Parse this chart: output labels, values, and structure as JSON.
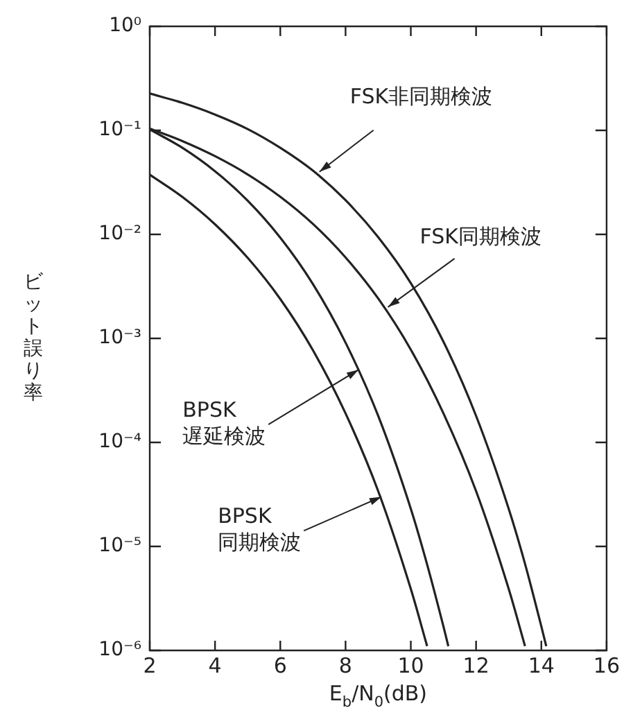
{
  "chart_data": {
    "type": "line",
    "xlabel": "E$_{b}$/N$_{0}$(dB)",
    "ylabel": "ビット誤り率",
    "log": "y",
    "xlim": [
      2,
      16
    ],
    "xticks": [
      2,
      4,
      6,
      8,
      10,
      12,
      14,
      16
    ],
    "ylim": [
      1e-06,
      1
    ],
    "yticks": [
      {
        "value": 1,
        "label": "10⁰"
      },
      {
        "value": 0.1,
        "label": "10⁻¹"
      },
      {
        "value": 0.01,
        "label": "10⁻²"
      },
      {
        "value": 0.001,
        "label": "10⁻³"
      },
      {
        "value": 0.0001,
        "label": "10⁻⁴"
      },
      {
        "value": 1e-05,
        "label": "10⁻⁵"
      },
      {
        "value": 1e-06,
        "label": "10⁻⁶"
      }
    ],
    "series": [
      {
        "color": "#222222",
        "x": [
          2,
          3,
          4,
          5,
          6,
          7,
          8,
          9,
          10,
          11,
          12,
          13,
          13.5,
          14,
          14.15
        ],
        "values": [
          0.226,
          0.184,
          0.142,
          0.103,
          0.068,
          0.041,
          0.0213,
          0.0094,
          0.0034,
          0.00093,
          0.00018,
          2.3e-05,
          6.8e-06,
          1.7e-06,
          1.1e-06
        ]
      },
      {
        "color": "#222222",
        "x": [
          2,
          3,
          4,
          5,
          6,
          7,
          8,
          9,
          10,
          11,
          12,
          13,
          13.5
        ],
        "values": [
          0.104,
          0.0789,
          0.0565,
          0.0377,
          0.023,
          0.0126,
          0.006,
          0.00242,
          0.00078,
          0.00019,
          3.4e-05,
          3.9e-06,
          1.1e-06
        ]
      },
      {
        "color": "#222222",
        "x": [
          2,
          3,
          4,
          5,
          6,
          7,
          8,
          9,
          10,
          10.5,
          11,
          11.15
        ],
        "values": [
          0.102,
          0.068,
          0.0405,
          0.0211,
          0.0093,
          0.00333,
          0.00091,
          0.00018,
          2.3e-05,
          6.7e-06,
          1.7e-06,
          1.1e-06
        ]
      },
      {
        "color": "#222222",
        "x": [
          2,
          3,
          4,
          5,
          6,
          7,
          8,
          9,
          10,
          10.5
        ],
        "values": [
          0.0375,
          0.0229,
          0.0125,
          0.00595,
          0.00239,
          0.00077,
          0.00019,
          3.4e-05,
          3.9e-06,
          1.1e-06
        ]
      }
    ],
    "annotations": [
      {
        "text": "FSK非同期検波",
        "x": 7.2,
        "y": 0.04
      },
      {
        "text": "FSK同期検波",
        "x": 9.3,
        "y": 0.002
      },
      {
        "text": "BPSK 遅延検波",
        "x": 8.4,
        "y": 0.0005
      },
      {
        "text": "BPSK 同期検波",
        "x": 9.1,
        "y": 3e-05
      }
    ]
  }
}
